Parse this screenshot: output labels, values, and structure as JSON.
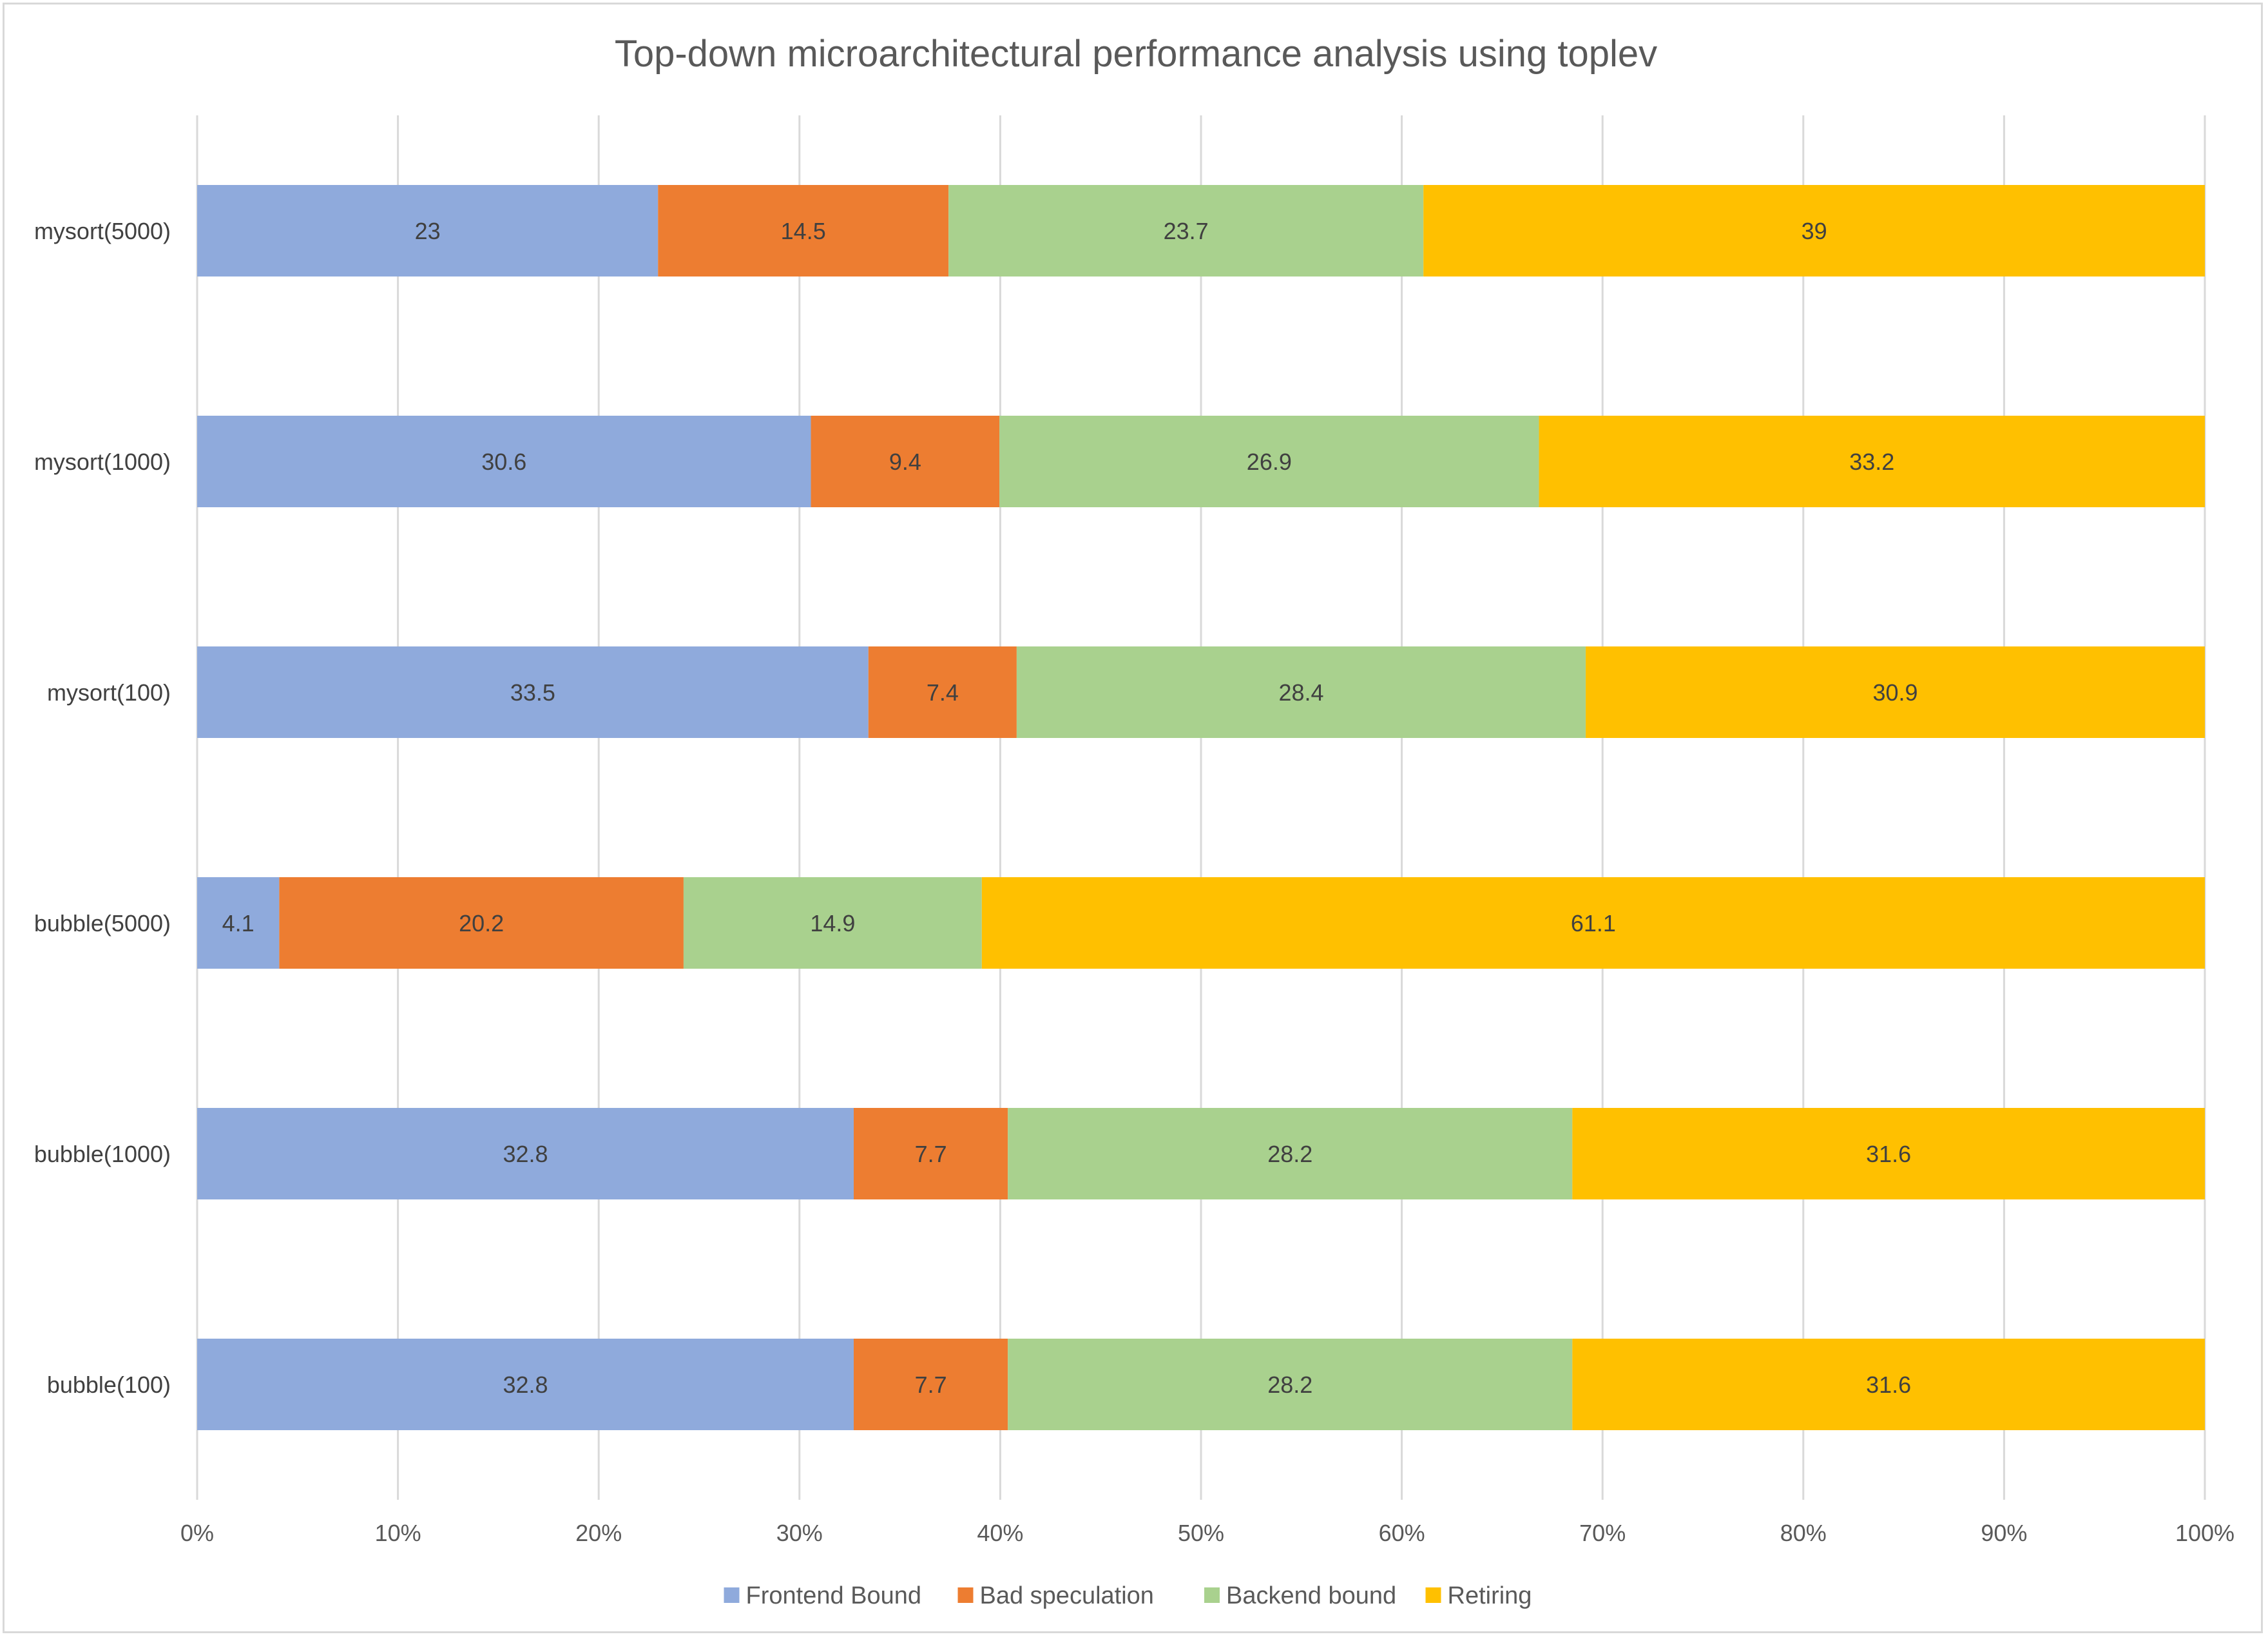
{
  "chart_data": {
    "type": "bar",
    "orientation": "horizontal",
    "stacked": "percent",
    "title": "Top-down microarchitectural performance analysis using toplev",
    "categories": [
      "bubble(100)",
      "bubble(1000)",
      "bubble(5000)",
      "mysort(100)",
      "mysort(1000)",
      "mysort(5000)"
    ],
    "series": [
      {
        "name": "Frontend Bound",
        "color": "#8faadc",
        "values": [
          32.8,
          32.8,
          4.1,
          33.5,
          30.6,
          23
        ]
      },
      {
        "name": "Bad speculation",
        "color": "#ed7d31",
        "values": [
          7.7,
          7.7,
          20.2,
          7.4,
          9.4,
          14.5
        ]
      },
      {
        "name": "Backend bound",
        "color": "#a9d18e",
        "values": [
          28.2,
          28.2,
          14.9,
          28.4,
          26.9,
          23.7
        ]
      },
      {
        "name": "Retiring",
        "color": "#ffc000",
        "values": [
          31.6,
          31.6,
          61.1,
          30.9,
          33.2,
          39
        ]
      }
    ],
    "x_ticks": [
      "0%",
      "10%",
      "20%",
      "30%",
      "40%",
      "50%",
      "60%",
      "70%",
      "80%",
      "90%",
      "100%"
    ],
    "xlim": [
      0,
      100
    ],
    "grid": true,
    "legend_position": "bottom",
    "data_labels": true
  }
}
